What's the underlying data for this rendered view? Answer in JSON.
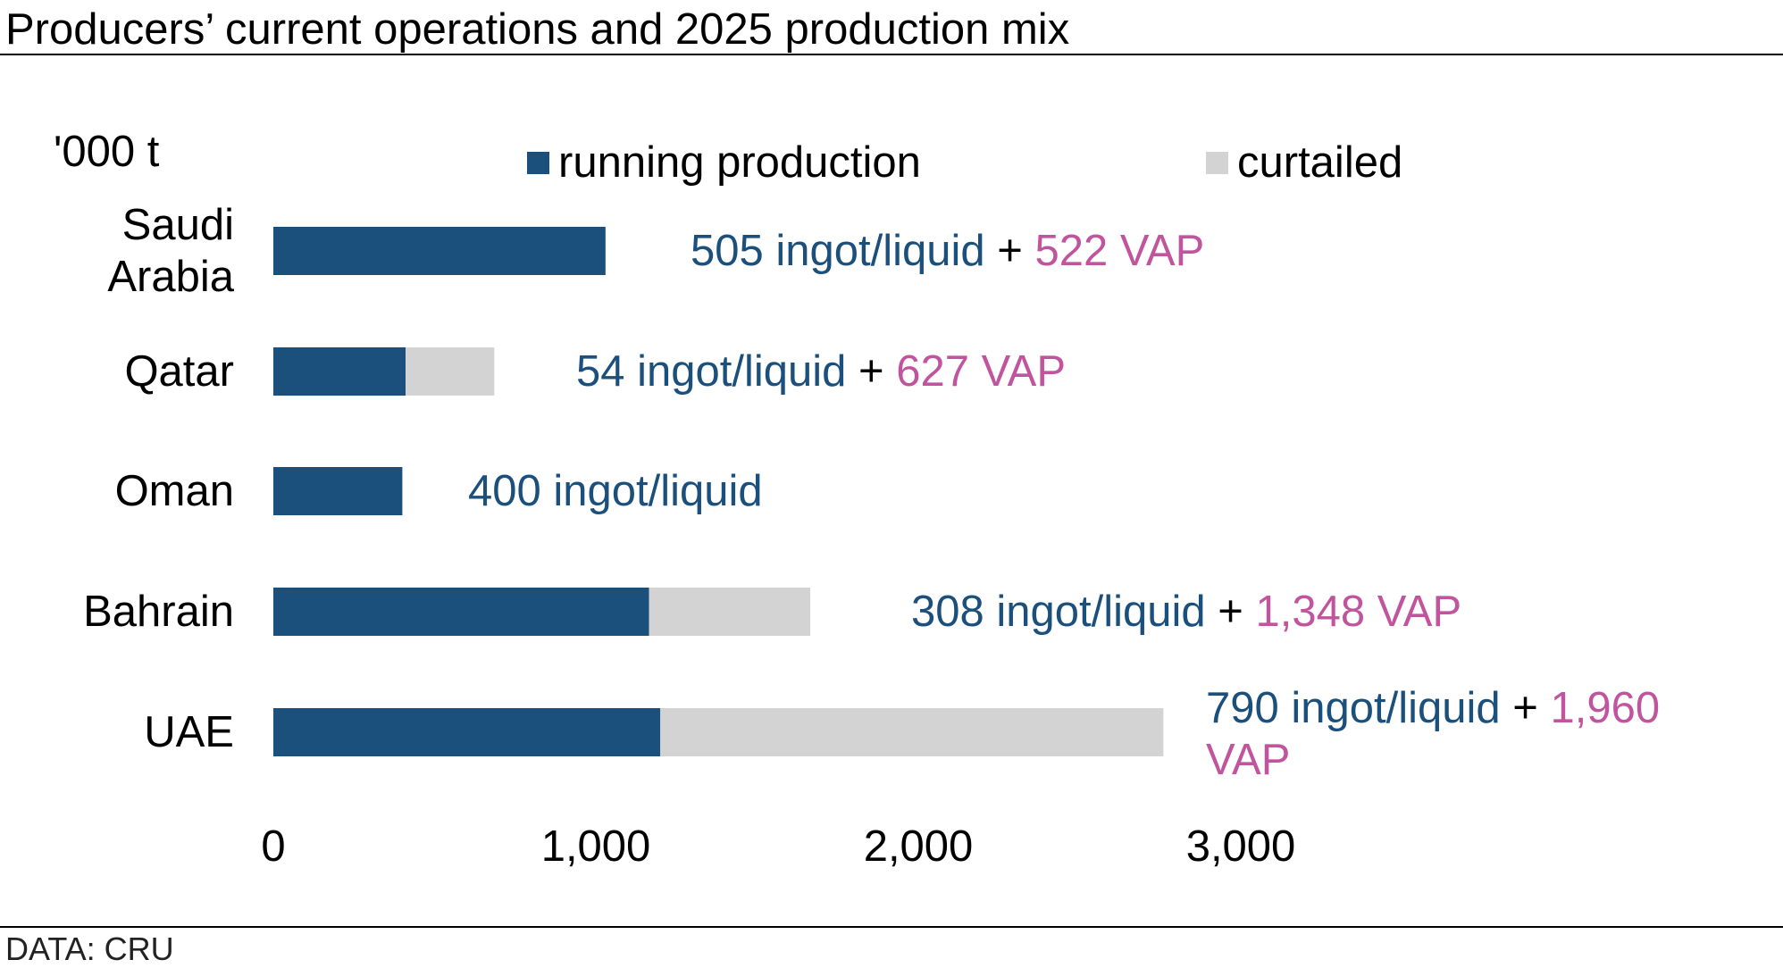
{
  "title": "Producers’ current operations and 2025 production mix",
  "source": "DATA: CRU",
  "unit_label": "'000 t",
  "colors": {
    "running": "#1b4f7c",
    "curtailed": "#d3d3d3",
    "ingot_text": "#1b4f7c",
    "vap_text": "#c0559e",
    "plus_text": "#000000"
  },
  "legend": [
    {
      "key": "running",
      "label": "running production"
    },
    {
      "key": "curtailed",
      "label": "curtailed"
    }
  ],
  "chart_data": {
    "type": "bar",
    "orientation": "horizontal",
    "stacked": true,
    "title": "Producers’ current operations and 2025 production mix",
    "xlabel": "'000 t",
    "xlim": [
      0,
      3000
    ],
    "x_ticks": [
      "0",
      "1,000",
      "2,000",
      "3,000"
    ],
    "x_tick_values": [
      0,
      1000,
      2000,
      3000
    ],
    "grid": false,
    "legend_position": "top",
    "categories": [
      "Saudi Arabia",
      "Qatar",
      "Oman",
      "Bahrain",
      "UAE"
    ],
    "category_lines": [
      [
        "Saudi",
        "Arabia"
      ],
      [
        "Qatar"
      ],
      [
        "Oman"
      ],
      [
        "Bahrain"
      ],
      [
        "UAE"
      ]
    ],
    "series": [
      {
        "name": "running production",
        "values": [
          1030,
          410,
          400,
          1165,
          1200
        ]
      },
      {
        "name": "curtailed",
        "values": [
          0,
          275,
          0,
          500,
          1560
        ]
      }
    ],
    "annotations": [
      {
        "category": "Saudi Arabia",
        "lines": [
          [
            {
              "text": "505 ingot/liquid",
              "kind": "ingot"
            },
            {
              "text": " + ",
              "kind": "plus"
            },
            {
              "text": "522 VAP",
              "kind": "vap"
            }
          ]
        ]
      },
      {
        "category": "Qatar",
        "lines": [
          [
            {
              "text": "54 ingot/liquid",
              "kind": "ingot"
            },
            {
              "text": " + ",
              "kind": "plus"
            },
            {
              "text": "627 VAP",
              "kind": "vap"
            }
          ]
        ]
      },
      {
        "category": "Oman",
        "lines": [
          [
            {
              "text": "400 ingot/liquid",
              "kind": "ingot"
            }
          ]
        ]
      },
      {
        "category": "Bahrain",
        "lines": [
          [
            {
              "text": "308 ingot/liquid",
              "kind": "ingot"
            },
            {
              "text": " + ",
              "kind": "plus"
            },
            {
              "text": "1,348 VAP",
              "kind": "vap"
            }
          ]
        ]
      },
      {
        "category": "UAE",
        "lines": [
          [
            {
              "text": "790 ingot/liquid",
              "kind": "ingot"
            },
            {
              "text": " + ",
              "kind": "plus"
            },
            {
              "text": "1,960",
              "kind": "vap"
            }
          ],
          [
            {
              "text": "VAP",
              "kind": "vap"
            }
          ]
        ]
      }
    ]
  }
}
